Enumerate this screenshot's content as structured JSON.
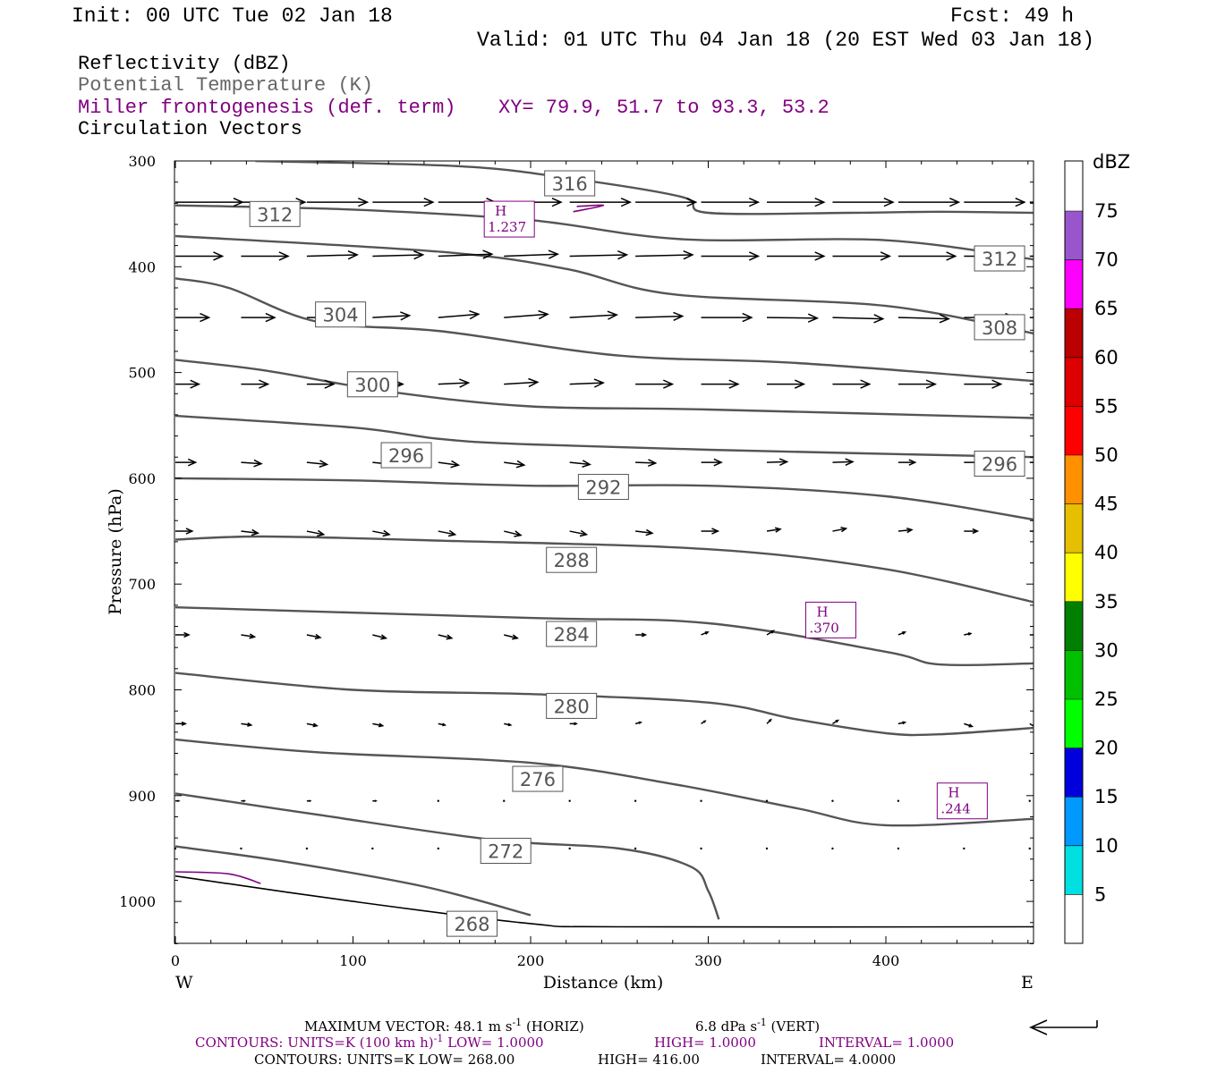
{
  "header": {
    "init": "Init: 00 UTC Tue 02 Jan 18",
    "fcst": "Fcst:   49 h",
    "valid": "Valid: 01 UTC Thu 04 Jan 18 (20 EST Wed 03 Jan 18)"
  },
  "titles": {
    "reflectivity": "Reflectivity (dBZ)",
    "theta": "Potential Temperature (K)",
    "miller": "Miller frontogenesis (def. term)",
    "xy": "XY=  79.9, 51.7 to  93.3, 53.2",
    "vectors": "Circulation Vectors"
  },
  "colors": {
    "theta": "#555555",
    "miller": "#800080",
    "text_gray": "#666666"
  },
  "chart_data": {
    "type": "line",
    "xlabel": "Distance (km)",
    "ylabel": "Pressure (hPa)",
    "xlim": [
      0,
      483
    ],
    "ylim": [
      1040,
      300
    ],
    "x_ticks": [
      0,
      100,
      200,
      300,
      400
    ],
    "y_ticks": [
      300,
      400,
      500,
      600,
      700,
      800,
      900,
      1000
    ],
    "x_end_labels": {
      "west": "W",
      "east": "E"
    },
    "theta_contours": [
      {
        "k": 316,
        "pts": [
          [
            45,
            300
          ],
          [
            160,
            305
          ],
          [
            220,
            316
          ],
          [
            285,
            334
          ],
          [
            300,
            349
          ],
          [
            380,
            349
          ],
          [
            430,
            348
          ],
          [
            483,
            349
          ]
        ]
      },
      {
        "k": 312,
        "pts": [
          [
            0,
            342
          ],
          [
            100,
            346
          ],
          [
            200,
            356
          ],
          [
            285,
            374
          ],
          [
            400,
            375
          ],
          [
            483,
            393
          ]
        ]
      },
      {
        "k": 308,
        "pts": [
          [
            0,
            371
          ],
          [
            150,
            386
          ],
          [
            220,
            402
          ],
          [
            280,
            426
          ],
          [
            400,
            437
          ],
          [
            483,
            463
          ]
        ]
      },
      {
        "k": 304,
        "pts": [
          [
            0,
            411
          ],
          [
            30,
            420
          ],
          [
            80,
            452
          ],
          [
            150,
            461
          ],
          [
            250,
            484
          ],
          [
            350,
            491
          ],
          [
            483,
            508
          ]
        ]
      },
      {
        "k": 300,
        "pts": [
          [
            0,
            488
          ],
          [
            50,
            498
          ],
          [
            120,
            518
          ],
          [
            200,
            532
          ],
          [
            300,
            535
          ],
          [
            483,
            543
          ]
        ]
      },
      {
        "k": 296,
        "pts": [
          [
            0,
            541
          ],
          [
            100,
            552
          ],
          [
            150,
            563
          ],
          [
            200,
            568
          ],
          [
            300,
            573
          ],
          [
            483,
            580
          ]
        ]
      },
      {
        "k": 292,
        "pts": [
          [
            0,
            600
          ],
          [
            100,
            602
          ],
          [
            200,
            607
          ],
          [
            300,
            607
          ],
          [
            400,
            617
          ],
          [
            483,
            639
          ]
        ]
      },
      {
        "k": 288,
        "pts": [
          [
            0,
            658
          ],
          [
            50,
            655
          ],
          [
            150,
            659
          ],
          [
            300,
            667
          ],
          [
            400,
            686
          ],
          [
            483,
            717
          ]
        ]
      },
      {
        "k": 284,
        "pts": [
          [
            0,
            722
          ],
          [
            200,
            732
          ],
          [
            300,
            737
          ],
          [
            400,
            764
          ],
          [
            430,
            776
          ],
          [
            483,
            775
          ]
        ]
      },
      {
        "k": 280,
        "pts": [
          [
            0,
            784
          ],
          [
            100,
            800
          ],
          [
            200,
            804
          ],
          [
            300,
            812
          ],
          [
            350,
            828
          ],
          [
            400,
            841
          ],
          [
            430,
            842
          ],
          [
            483,
            836
          ]
        ]
      },
      {
        "k": 276,
        "pts": [
          [
            0,
            847
          ],
          [
            80,
            859
          ],
          [
            200,
            869
          ],
          [
            280,
            889
          ],
          [
            350,
            912
          ],
          [
            400,
            928
          ],
          [
            483,
            922
          ]
        ]
      },
      {
        "k": 272,
        "pts": [
          [
            0,
            898
          ],
          [
            80,
            918
          ],
          [
            180,
            942
          ],
          [
            250,
            950
          ],
          [
            290,
            967
          ],
          [
            300,
            990
          ],
          [
            306,
            1017
          ]
        ]
      },
      {
        "k": 268,
        "pts": [
          [
            0,
            948
          ],
          [
            60,
            962
          ],
          [
            140,
            986
          ],
          [
            200,
            1013
          ]
        ]
      }
    ],
    "ground": {
      "pts": [
        [
          0,
          976
        ],
        [
          100,
          1000
        ],
        [
          200,
          1021
        ],
        [
          250,
          1024
        ],
        [
          483,
          1024
        ]
      ]
    },
    "miller_contours": [
      {
        "pts": [
          [
            0,
            972
          ],
          [
            30,
            974
          ],
          [
            48,
            983
          ]
        ]
      },
      {
        "pts": [
          [
            224,
            348
          ],
          [
            241,
            342
          ],
          [
            226,
            343
          ]
        ]
      }
    ],
    "contour_labels": [
      {
        "text": "316",
        "x": 222,
        "y": 322
      },
      {
        "text": "312",
        "x": 56,
        "y": 351
      },
      {
        "text": "312",
        "x": 464,
        "y": 393
      },
      {
        "text": "304",
        "x": 93,
        "y": 446
      },
      {
        "text": "308",
        "x": 464,
        "y": 458
      },
      {
        "text": "300",
        "x": 111,
        "y": 512
      },
      {
        "text": "296",
        "x": 130,
        "y": 579
      },
      {
        "text": "296",
        "x": 464,
        "y": 587
      },
      {
        "text": "292",
        "x": 241,
        "y": 609
      },
      {
        "text": "288",
        "x": 223,
        "y": 678
      },
      {
        "text": "284",
        "x": 223,
        "y": 748
      },
      {
        "text": "280",
        "x": 223,
        "y": 816
      },
      {
        "text": "276",
        "x": 204,
        "y": 885
      },
      {
        "text": "272",
        "x": 186,
        "y": 953
      },
      {
        "text": "268",
        "x": 167,
        "y": 1022
      }
    ],
    "miller_maxima": [
      {
        "label": "H",
        "value": "1.237",
        "x": 188,
        "y": 355
      },
      {
        "label": "H",
        "value": ".370",
        "x": 369,
        "y": 734
      },
      {
        "label": "H",
        "value": ".244",
        "x": 443,
        "y": 905
      }
    ],
    "vectors": {
      "x": [
        0,
        37,
        74,
        111,
        148,
        185,
        222,
        259,
        296,
        333,
        370,
        407,
        444,
        481
      ],
      "levels": [
        {
          "p": 339,
          "u": [
            1.0,
            0.95,
            0.9,
            0.9,
            0.85,
            0.85,
            0.9,
            0.9,
            0.85,
            0.85,
            0.9,
            0.9,
            0.9,
            0.8
          ],
          "w": [
            0,
            0,
            0,
            0,
            0,
            0,
            0,
            0,
            0,
            0,
            0,
            0,
            0,
            0
          ]
        },
        {
          "p": 390,
          "u": [
            0.7,
            0.7,
            0.75,
            0.75,
            0.8,
            0.8,
            0.85,
            0.85,
            0.85,
            0.85,
            0.85,
            0.85,
            0.85,
            0.8
          ],
          "w": [
            0,
            0,
            -0.02,
            -0.02,
            -0.03,
            -0.03,
            -0.02,
            -0.02,
            0,
            0,
            0,
            0,
            0,
            0
          ]
        },
        {
          "p": 448,
          "u": [
            0.5,
            0.5,
            0.55,
            0.55,
            0.6,
            0.65,
            0.7,
            0.7,
            0.75,
            0.75,
            0.75,
            0.75,
            0.75,
            0.7
          ],
          "w": [
            0,
            0,
            0,
            -0.03,
            -0.05,
            -0.05,
            -0.04,
            -0.02,
            0,
            0.01,
            0.02,
            0.02,
            0,
            0
          ]
        },
        {
          "p": 511,
          "u": [
            0.35,
            0.4,
            0.4,
            0.45,
            0.45,
            0.5,
            0.5,
            0.55,
            0.55,
            0.55,
            0.55,
            0.55,
            0.55,
            0.5
          ],
          "w": [
            0,
            0,
            0,
            0,
            -0.02,
            -0.03,
            -0.02,
            0,
            0,
            0,
            0,
            0,
            0,
            0
          ]
        },
        {
          "p": 585,
          "u": [
            0.3,
            0.3,
            0.3,
            0.3,
            0.3,
            0.3,
            0.3,
            0.3,
            0.3,
            0.3,
            0.3,
            0.25,
            0.25,
            0.25
          ],
          "w": [
            0,
            0.02,
            0.03,
            0.03,
            0.04,
            0.04,
            0.03,
            0.01,
            0,
            -0.01,
            -0.01,
            0,
            0,
            0
          ]
        },
        {
          "p": 650,
          "u": [
            0.25,
            0.25,
            0.25,
            0.25,
            0.25,
            0.25,
            0.25,
            0.25,
            0.25,
            0.2,
            0.2,
            0.2,
            0.2,
            0.2
          ],
          "w": [
            0,
            0.03,
            0.05,
            0.05,
            0.05,
            0.06,
            0.05,
            0.03,
            0,
            -0.03,
            -0.04,
            -0.02,
            0,
            0
          ]
        },
        {
          "p": 748,
          "u": [
            0.2,
            0.2,
            0.2,
            0.2,
            0.2,
            0.2,
            0.2,
            0.15,
            0.1,
            0.1,
            0.1,
            0.1,
            0.1,
            0.1
          ],
          "w": [
            0,
            0.03,
            0.04,
            0.05,
            0.05,
            0.05,
            0.04,
            0.0,
            -0.04,
            -0.06,
            -0.06,
            -0.04,
            -0.02,
            0
          ]
        },
        {
          "p": 832,
          "u": [
            0.15,
            0.15,
            0.15,
            0.15,
            0.1,
            0.1,
            0.1,
            0.08,
            0.06,
            0.06,
            0.08,
            0.1,
            0.12,
            0.1
          ],
          "w": [
            0,
            0.02,
            0.03,
            0.03,
            0.02,
            0.02,
            0.0,
            -0.02,
            -0.04,
            -0.06,
            -0.05,
            -0.02,
            0.04,
            0.06
          ]
        },
        {
          "p": 905,
          "u": [
            0.05,
            0.05,
            0.05,
            0.05,
            0.03,
            0.02,
            0.02,
            0.02,
            0.02,
            0.02,
            0.02,
            0.02,
            0.02,
            0.02
          ],
          "w": [
            0,
            0,
            0,
            0,
            0,
            0,
            0,
            0,
            0,
            0,
            0,
            0,
            0,
            0
          ]
        },
        {
          "p": 950,
          "u": [
            0.0,
            0.0,
            0.0,
            0.0,
            0.01,
            0.01,
            0.01,
            0.01,
            0.01,
            0.01,
            0.01,
            0.01,
            0.01,
            0.01
          ],
          "w": [
            0,
            0,
            0,
            0,
            0,
            0,
            0,
            0,
            0,
            0,
            0,
            0,
            0,
            0
          ]
        }
      ]
    }
  },
  "colorbar": {
    "unit": "dBZ",
    "levels": [
      "5",
      "10",
      "15",
      "20",
      "25",
      "30",
      "35",
      "40",
      "45",
      "50",
      "55",
      "60",
      "65",
      "70",
      "75"
    ],
    "colors": [
      "#ffffff",
      "#00e0e0",
      "#0099ff",
      "#0000dd",
      "#00ff00",
      "#00c000",
      "#008000",
      "#ffff00",
      "#e6bf00",
      "#ff9000",
      "#ff0000",
      "#dd0000",
      "#bb0000",
      "#ff00ff",
      "#9955cc",
      "#ffffff"
    ]
  },
  "footer": {
    "maxvec_a": "MAXIMUM VECTOR:  48.1 m s",
    "maxvec_b": "-1",
    "maxvec_c": " (HORIZ)",
    "maxvec_d": "6.8 dPa s",
    "maxvec_e": "-1",
    "maxvec_f": " (VERT)",
    "miller_a": "CONTOURS:  UNITS=K (100 km h)",
    "miller_b": "-1",
    "miller_c": "  LOW=   1.0000",
    "miller_d": "HIGH=   1.0000",
    "miller_e": "INTERVAL=    1.0000",
    "theta_a": "CONTOURS:  UNITS=K  LOW=   268.00",
    "theta_b": "HIGH=   416.00",
    "theta_c": "INTERVAL=     4.0000"
  }
}
